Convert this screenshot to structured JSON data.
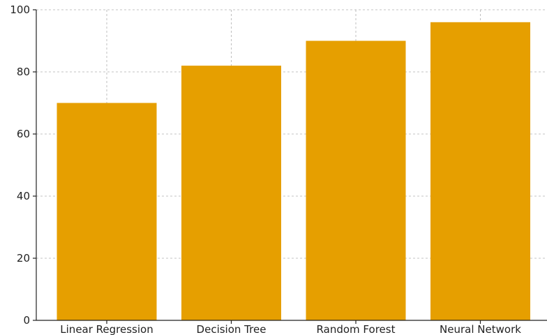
{
  "chart_data": {
    "type": "bar",
    "categories": [
      "Linear Regression",
      "Decision Tree",
      "Random Forest",
      "Neural Network"
    ],
    "values": [
      70,
      82,
      90,
      96
    ],
    "title": "",
    "xlabel": "",
    "ylabel": "",
    "ylim": [
      0,
      100
    ],
    "yticks": [
      0,
      20,
      40,
      60,
      80,
      100
    ],
    "grid": true,
    "bar_color": "#E69F00"
  }
}
